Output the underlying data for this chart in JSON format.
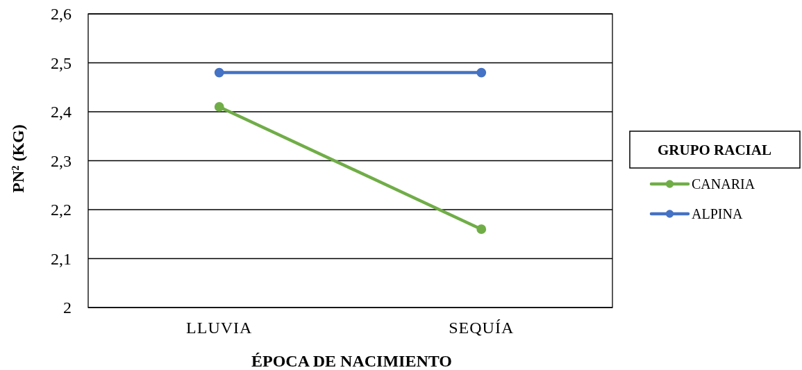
{
  "chart_data": {
    "type": "line",
    "xlabel": "ÉPOCA DE NACIMIENTO",
    "ylabel": "PN² (KG)",
    "legend_title": "GRUPO RACIAL",
    "categories": [
      "LLUVIA",
      "SEQUÍA"
    ],
    "series": [
      {
        "name": "CANARIA",
        "color": "#70ad47",
        "values": [
          2.41,
          2.16
        ]
      },
      {
        "name": "ALPINA",
        "color": "#4472c4",
        "values": [
          2.48,
          2.48
        ]
      }
    ],
    "ylim": [
      2,
      2.6
    ],
    "yticks": [
      2,
      {
        "value": 2.1,
        "label": "2,1"
      },
      {
        "value": 2.2,
        "label": "2,2"
      },
      {
        "value": 2.3,
        "label": "2,3"
      },
      {
        "value": 2.4,
        "label": "2,4"
      },
      {
        "value": 2.5,
        "label": "2,5"
      },
      {
        "value": 2.6,
        "label": "2,6"
      }
    ],
    "grid": "y",
    "legend": "right",
    "marker": "circle",
    "line_style": "solid"
  }
}
